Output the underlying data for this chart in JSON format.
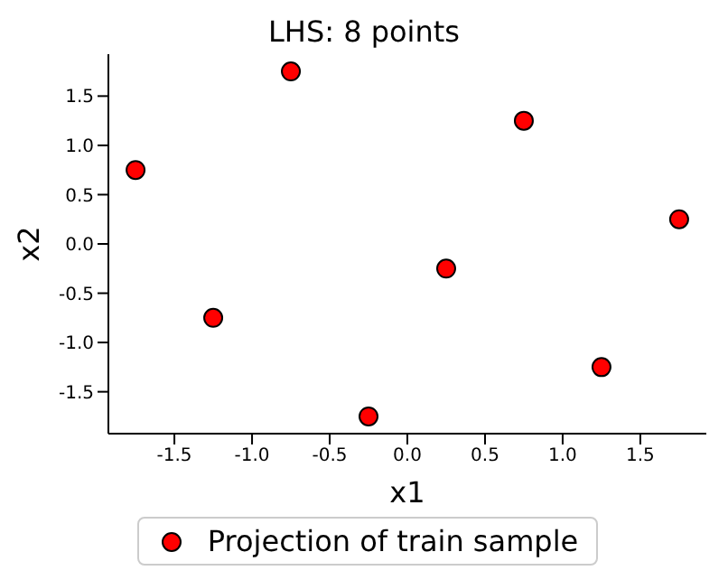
{
  "chart_data": {
    "type": "scatter",
    "title": "LHS: 8 points",
    "xlabel": "x1",
    "ylabel": "x2",
    "x": [
      -1.75,
      -1.25,
      -0.75,
      -0.25,
      0.25,
      0.75,
      1.25,
      1.75
    ],
    "series": [
      {
        "name": "Projection of train sample",
        "color": "#ff0000",
        "values": [
          0.75,
          -0.75,
          1.75,
          -1.75,
          -0.25,
          1.25,
          -1.25,
          0.25
        ]
      }
    ],
    "xlim": [
      -1.925,
      1.925
    ],
    "ylim": [
      -1.925,
      1.925
    ],
    "xticks": [
      -1.5,
      {
        "value": -1,
        "label": "-1.0"
      },
      -0.5,
      {
        "value": 0,
        "label": "0.0"
      },
      0.5,
      {
        "value": 1,
        "label": "1.0"
      },
      1.5
    ],
    "yticks": [
      -1.5,
      {
        "value": -1,
        "label": "-1.0"
      },
      -0.5,
      {
        "value": 0,
        "label": "0.0"
      },
      0.5,
      {
        "value": 1,
        "label": "1.0"
      },
      1.5
    ],
    "marker": "circle",
    "grid": false,
    "legend": "bottom"
  }
}
